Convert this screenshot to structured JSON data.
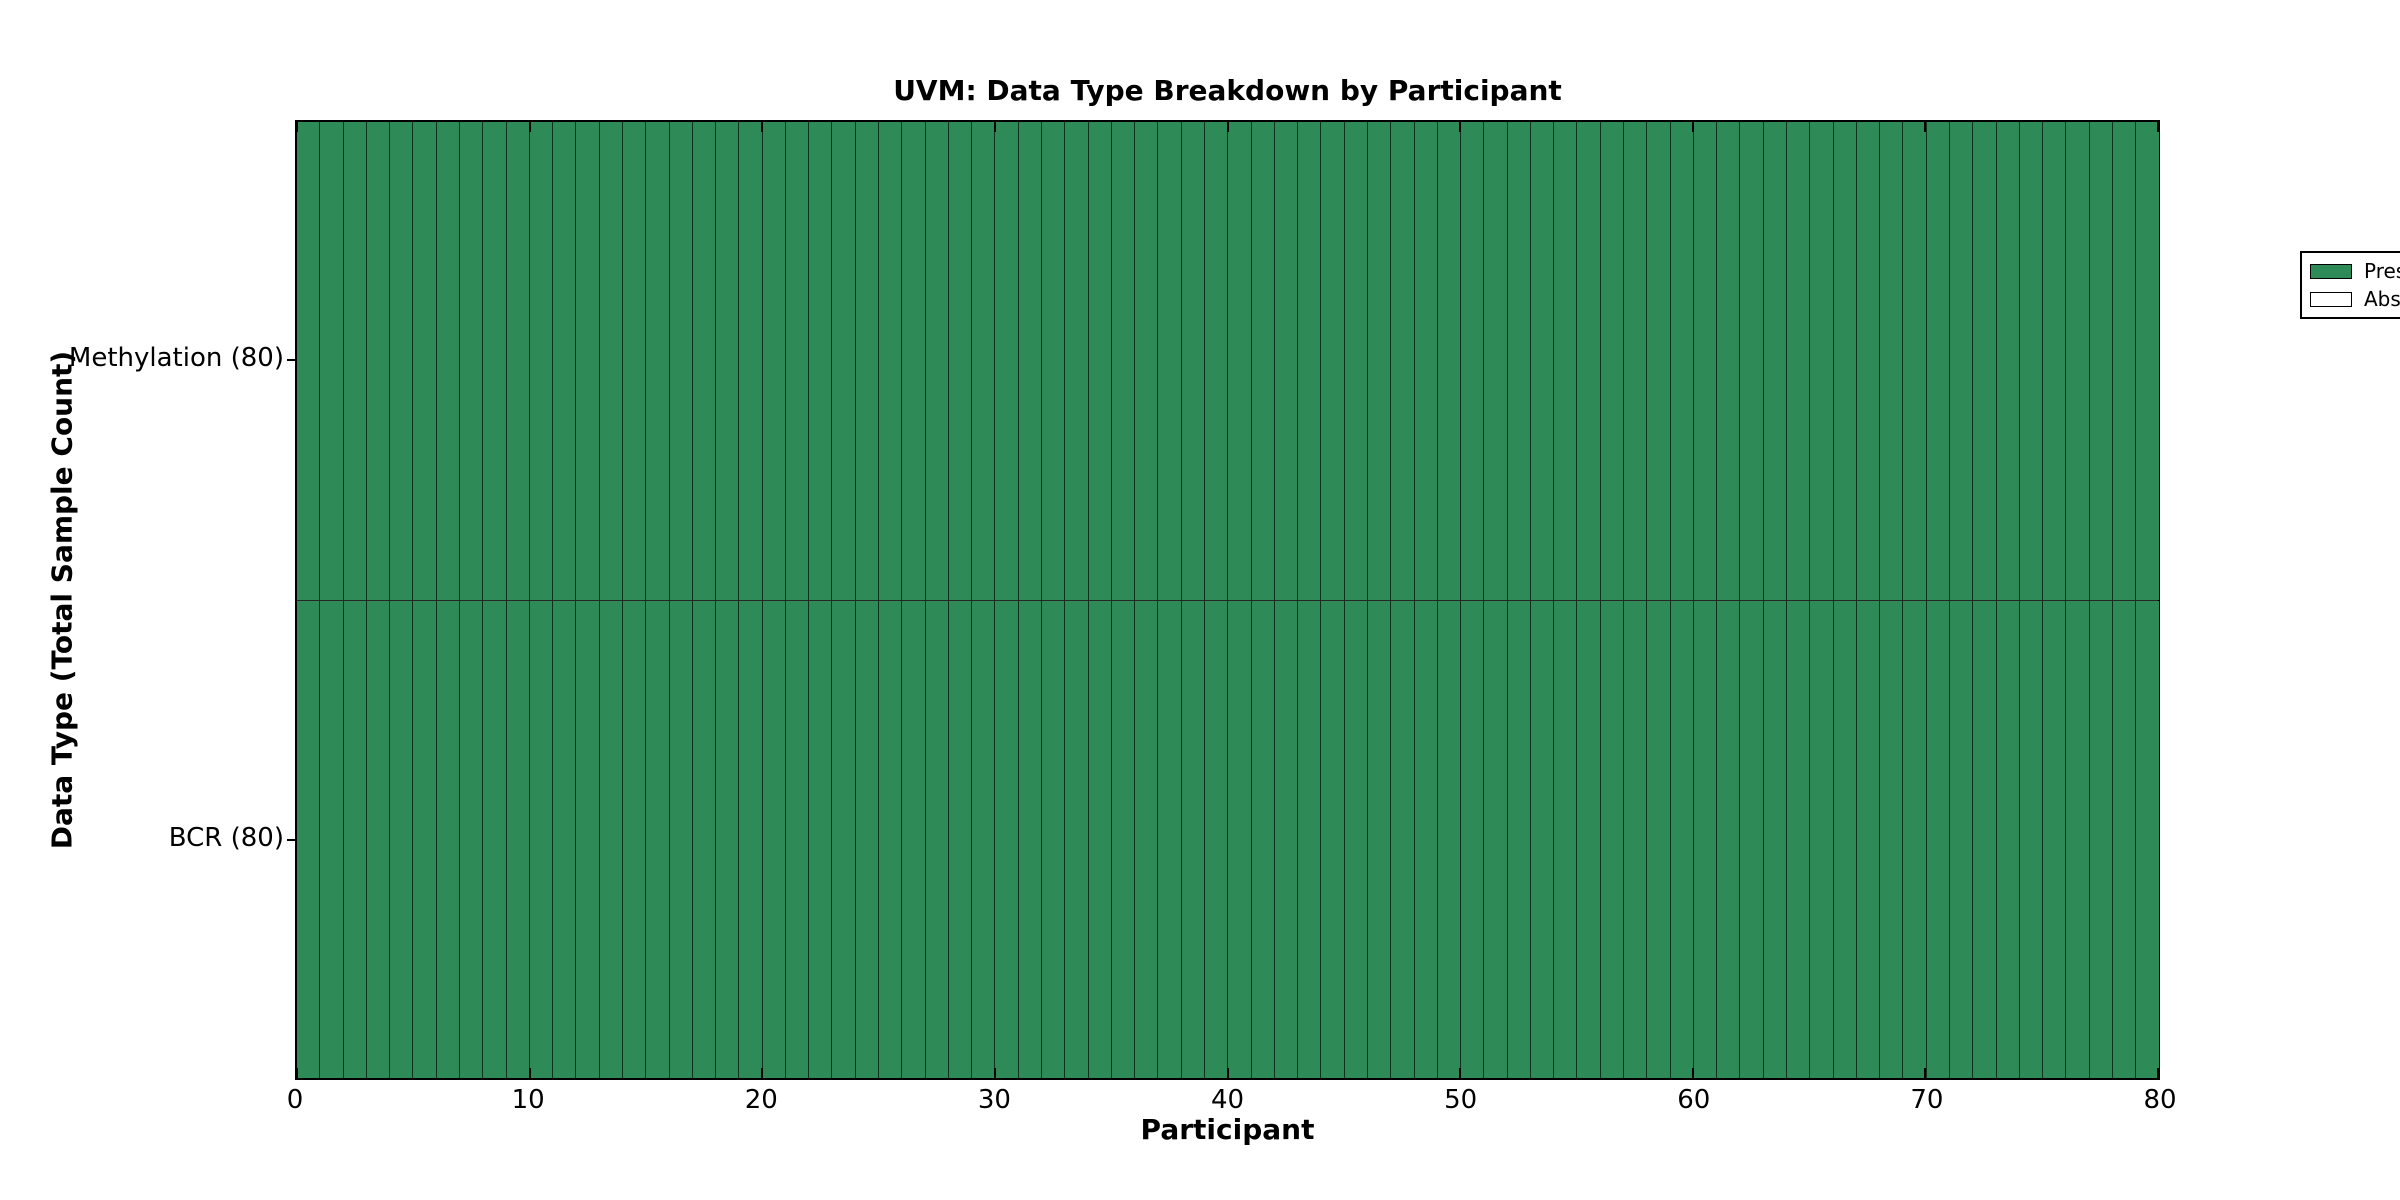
{
  "figure": {
    "title": "UVM: Data Type Breakdown by Participant",
    "x_axis_label": "Participant",
    "y_axis_label": "Data Type (Total Sample Count)"
  },
  "legend": {
    "position": "upper right",
    "items": [
      {
        "label": "Present",
        "color": "#2E8B57"
      },
      {
        "label": "Absent",
        "color": "#FFFFFF"
      }
    ]
  },
  "chart_data": {
    "type": "heatmap",
    "title": "UVM: Data Type Breakdown by Participant",
    "xlabel": "Participant",
    "ylabel": "Data Type (Total Sample Count)",
    "x_range": [
      0,
      80
    ],
    "x_ticks": [
      0,
      10,
      20,
      30,
      40,
      50,
      60,
      70,
      80
    ],
    "n_participants": 80,
    "value_meaning": {
      "1": "Present",
      "0": "Absent"
    },
    "colors": {
      "present": "#2E8B57",
      "absent": "#FFFFFF",
      "cell_edge": "#000000"
    },
    "legend_entries": [
      "Present",
      "Absent"
    ],
    "legend_position": "upper right",
    "grid": false,
    "rows": [
      {
        "name": "Methylation",
        "tick_label": "Methylation (80)",
        "total_samples": 80,
        "present_count": 80,
        "absent_count": 0,
        "values": [
          1,
          1,
          1,
          1,
          1,
          1,
          1,
          1,
          1,
          1,
          1,
          1,
          1,
          1,
          1,
          1,
          1,
          1,
          1,
          1,
          1,
          1,
          1,
          1,
          1,
          1,
          1,
          1,
          1,
          1,
          1,
          1,
          1,
          1,
          1,
          1,
          1,
          1,
          1,
          1,
          1,
          1,
          1,
          1,
          1,
          1,
          1,
          1,
          1,
          1,
          1,
          1,
          1,
          1,
          1,
          1,
          1,
          1,
          1,
          1,
          1,
          1,
          1,
          1,
          1,
          1,
          1,
          1,
          1,
          1,
          1,
          1,
          1,
          1,
          1,
          1,
          1,
          1,
          1,
          1
        ]
      },
      {
        "name": "BCR",
        "tick_label": "BCR (80)",
        "total_samples": 80,
        "present_count": 80,
        "absent_count": 0,
        "values": [
          1,
          1,
          1,
          1,
          1,
          1,
          1,
          1,
          1,
          1,
          1,
          1,
          1,
          1,
          1,
          1,
          1,
          1,
          1,
          1,
          1,
          1,
          1,
          1,
          1,
          1,
          1,
          1,
          1,
          1,
          1,
          1,
          1,
          1,
          1,
          1,
          1,
          1,
          1,
          1,
          1,
          1,
          1,
          1,
          1,
          1,
          1,
          1,
          1,
          1,
          1,
          1,
          1,
          1,
          1,
          1,
          1,
          1,
          1,
          1,
          1,
          1,
          1,
          1,
          1,
          1,
          1,
          1,
          1,
          1,
          1,
          1,
          1,
          1,
          1,
          1,
          1,
          1,
          1,
          1
        ]
      }
    ]
  }
}
